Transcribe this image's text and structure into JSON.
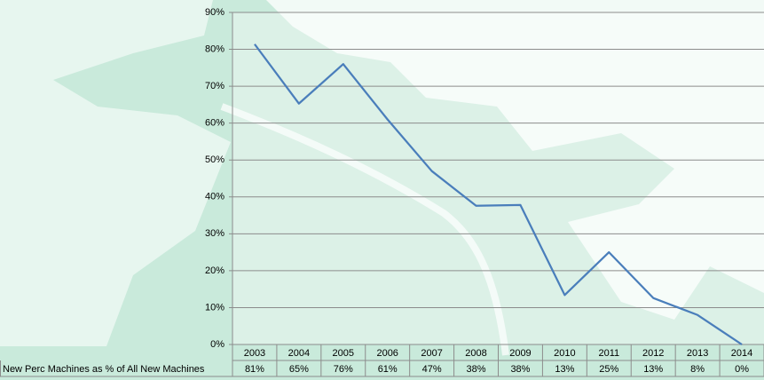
{
  "chart_data": {
    "type": "line",
    "categories": [
      "2003",
      "2004",
      "2005",
      "2006",
      "2007",
      "2008",
      "2009",
      "2010",
      "2011",
      "2012",
      "2013",
      "2014"
    ],
    "series": [
      {
        "name": "New Perc Machines as % of All New Machines",
        "color": "#4a7ebb",
        "values": [
          81.4,
          65.3,
          76,
          61,
          47,
          37.6,
          37.8,
          13.4,
          25,
          12.6,
          8,
          0
        ],
        "value_labels": [
          "81%",
          "65%",
          "76%",
          "61%",
          "47%",
          "38%",
          "38%",
          "13%",
          "25%",
          "13%",
          "8%",
          "0%"
        ]
      }
    ],
    "ylim": [
      0,
      90
    ],
    "yticks": [
      {
        "value": 0,
        "label": "0%"
      },
      {
        "value": 10,
        "label": "10%"
      },
      {
        "value": 20,
        "label": "20%"
      },
      {
        "value": 30,
        "label": "30%"
      },
      {
        "value": 40,
        "label": "40%"
      },
      {
        "value": 50,
        "label": "50%"
      },
      {
        "value": 60,
        "label": "60%"
      },
      {
        "value": 70,
        "label": "70%"
      },
      {
        "value": 80,
        "label": "80%"
      },
      {
        "value": 90,
        "label": "90%"
      }
    ],
    "grid": true
  }
}
